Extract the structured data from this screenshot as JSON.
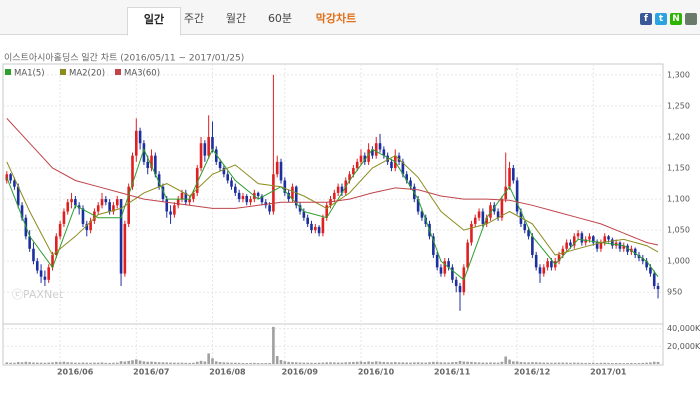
{
  "tabs": [
    "일간",
    "주간",
    "월간",
    "60분",
    "막강차트"
  ],
  "share_icons": [
    "f",
    "t",
    "N"
  ],
  "chart_data": {
    "type": "candlestick",
    "subtitle": "이스트아시아홀딩스 일간 차트 (2016/05/11 ~ 2017/01/25)",
    "watermark": "ⓒPAXNet",
    "up_color": "#e02020",
    "down_color": "#1c2f9e",
    "volume_color": "#a0a0a0",
    "xlim": [
      -1,
      172.3
    ],
    "xticks": [
      {
        "value": 14,
        "label": "2016/06"
      },
      {
        "value": 34,
        "label": "2016/07"
      },
      {
        "value": 54,
        "label": "2016/08"
      },
      {
        "value": 73,
        "label": "2016/09"
      },
      {
        "value": 93,
        "label": "2016/10"
      },
      {
        "value": 113,
        "label": "2016/11"
      },
      {
        "value": 134,
        "label": "2016/12"
      },
      {
        "value": 154,
        "label": "2017/01"
      }
    ],
    "ylim": [
      902,
      1316
    ],
    "yticks": [
      {
        "value": 950,
        "label": "950"
      },
      {
        "value": 1000,
        "label": "1,000"
      },
      {
        "value": 1050,
        "label": "1,050"
      },
      {
        "value": 1100,
        "label": "1,100"
      },
      {
        "value": 1150,
        "label": "1,150"
      },
      {
        "value": 1200,
        "label": "1,200"
      },
      {
        "value": 1250,
        "label": "1,250"
      },
      {
        "value": 1300,
        "label": "1,300"
      }
    ],
    "vlim": [
      0,
      43000
    ],
    "vticks": [
      {
        "value": 20000,
        "label": "20,000K"
      },
      {
        "value": 40000,
        "label": "40,000K"
      }
    ],
    "grid": true,
    "ohlc": [
      [
        1130,
        1145,
        1125,
        1140
      ],
      [
        1140,
        1142,
        1125,
        1130
      ],
      [
        1130,
        1135,
        1115,
        1120
      ],
      [
        1120,
        1125,
        1085,
        1090
      ],
      [
        1090,
        1095,
        1065,
        1070
      ],
      [
        1070,
        1075,
        1035,
        1040
      ],
      [
        1040,
        1050,
        1015,
        1020
      ],
      [
        1020,
        1030,
        995,
        1000
      ],
      [
        1000,
        1005,
        980,
        985
      ],
      [
        985,
        995,
        965,
        975
      ],
      [
        975,
        985,
        960,
        970
      ],
      [
        970,
        995,
        965,
        990
      ],
      [
        990,
        1015,
        985,
        1010
      ],
      [
        1010,
        1045,
        1005,
        1040
      ],
      [
        1040,
        1065,
        1035,
        1060
      ],
      [
        1060,
        1085,
        1055,
        1080
      ],
      [
        1080,
        1100,
        1075,
        1095
      ],
      [
        1095,
        1110,
        1085,
        1100
      ],
      [
        1100,
        1105,
        1085,
        1090
      ],
      [
        1090,
        1095,
        1075,
        1085
      ],
      [
        1085,
        1090,
        1055,
        1060
      ],
      [
        1060,
        1065,
        1040,
        1050
      ],
      [
        1050,
        1070,
        1045,
        1065
      ],
      [
        1065,
        1085,
        1060,
        1080
      ],
      [
        1080,
        1095,
        1075,
        1090
      ],
      [
        1090,
        1110,
        1085,
        1100
      ],
      [
        1100,
        1105,
        1090,
        1095
      ],
      [
        1095,
        1100,
        1075,
        1080
      ],
      [
        1080,
        1095,
        1075,
        1090
      ],
      [
        1090,
        1105,
        1085,
        1100
      ],
      [
        1100,
        1100,
        960,
        980
      ],
      [
        980,
        1065,
        975,
        1060
      ],
      [
        1060,
        1125,
        1055,
        1120
      ],
      [
        1120,
        1175,
        1115,
        1170
      ],
      [
        1170,
        1230,
        1160,
        1210
      ],
      [
        1210,
        1215,
        1180,
        1190
      ],
      [
        1190,
        1195,
        1155,
        1160
      ],
      [
        1160,
        1170,
        1140,
        1150
      ],
      [
        1150,
        1180,
        1145,
        1170
      ],
      [
        1170,
        1175,
        1135,
        1140
      ],
      [
        1140,
        1145,
        1115,
        1120
      ],
      [
        1120,
        1125,
        1095,
        1100
      ],
      [
        1100,
        1105,
        1070,
        1080
      ],
      [
        1080,
        1090,
        1060,
        1075
      ],
      [
        1075,
        1095,
        1070,
        1090
      ],
      [
        1090,
        1105,
        1085,
        1100
      ],
      [
        1100,
        1115,
        1095,
        1110
      ],
      [
        1110,
        1115,
        1090,
        1095
      ],
      [
        1095,
        1105,
        1090,
        1100
      ],
      [
        1100,
        1115,
        1095,
        1110
      ],
      [
        1110,
        1155,
        1105,
        1150
      ],
      [
        1150,
        1200,
        1145,
        1190
      ],
      [
        1190,
        1195,
        1160,
        1170
      ],
      [
        1170,
        1235,
        1165,
        1200
      ],
      [
        1200,
        1225,
        1175,
        1180
      ],
      [
        1180,
        1185,
        1155,
        1160
      ],
      [
        1160,
        1165,
        1145,
        1150
      ],
      [
        1150,
        1155,
        1135,
        1140
      ],
      [
        1140,
        1145,
        1125,
        1130
      ],
      [
        1130,
        1135,
        1115,
        1120
      ],
      [
        1120,
        1125,
        1105,
        1110
      ],
      [
        1110,
        1115,
        1095,
        1100
      ],
      [
        1100,
        1110,
        1095,
        1105
      ],
      [
        1105,
        1108,
        1090,
        1095
      ],
      [
        1095,
        1105,
        1090,
        1100
      ],
      [
        1100,
        1115,
        1095,
        1110
      ],
      [
        1110,
        1112,
        1100,
        1105
      ],
      [
        1105,
        1108,
        1090,
        1095
      ],
      [
        1095,
        1100,
        1085,
        1090
      ],
      [
        1090,
        1095,
        1075,
        1080
      ],
      [
        1080,
        1300,
        1075,
        1140
      ],
      [
        1140,
        1170,
        1135,
        1160
      ],
      [
        1160,
        1165,
        1125,
        1130
      ],
      [
        1130,
        1135,
        1105,
        1110
      ],
      [
        1110,
        1115,
        1095,
        1100
      ],
      [
        1100,
        1125,
        1095,
        1120
      ],
      [
        1120,
        1122,
        1085,
        1090
      ],
      [
        1090,
        1095,
        1075,
        1080
      ],
      [
        1080,
        1085,
        1065,
        1070
      ],
      [
        1070,
        1075,
        1055,
        1060
      ],
      [
        1060,
        1065,
        1045,
        1050
      ],
      [
        1050,
        1060,
        1045,
        1055
      ],
      [
        1055,
        1058,
        1040,
        1045
      ],
      [
        1045,
        1075,
        1040,
        1070
      ],
      [
        1070,
        1095,
        1065,
        1090
      ],
      [
        1090,
        1105,
        1085,
        1100
      ],
      [
        1100,
        1115,
        1095,
        1110
      ],
      [
        1110,
        1125,
        1105,
        1120
      ],
      [
        1120,
        1125,
        1105,
        1110
      ],
      [
        1110,
        1135,
        1105,
        1130
      ],
      [
        1130,
        1145,
        1125,
        1140
      ],
      [
        1140,
        1155,
        1135,
        1150
      ],
      [
        1150,
        1165,
        1145,
        1160
      ],
      [
        1160,
        1180,
        1155,
        1170
      ],
      [
        1170,
        1175,
        1155,
        1160
      ],
      [
        1160,
        1190,
        1155,
        1180
      ],
      [
        1180,
        1185,
        1165,
        1170
      ],
      [
        1170,
        1200,
        1165,
        1190
      ],
      [
        1190,
        1205,
        1175,
        1180
      ],
      [
        1180,
        1185,
        1165,
        1170
      ],
      [
        1170,
        1175,
        1155,
        1160
      ],
      [
        1160,
        1165,
        1145,
        1150
      ],
      [
        1150,
        1180,
        1145,
        1170
      ],
      [
        1170,
        1175,
        1155,
        1160
      ],
      [
        1160,
        1165,
        1135,
        1140
      ],
      [
        1140,
        1145,
        1125,
        1130
      ],
      [
        1130,
        1135,
        1115,
        1120
      ],
      [
        1120,
        1125,
        1095,
        1100
      ],
      [
        1100,
        1105,
        1075,
        1080
      ],
      [
        1080,
        1085,
        1065,
        1070
      ],
      [
        1070,
        1075,
        1055,
        1060
      ],
      [
        1060,
        1065,
        1035,
        1040
      ],
      [
        1040,
        1045,
        1005,
        1010
      ],
      [
        1010,
        1015,
        985,
        990
      ],
      [
        990,
        995,
        975,
        980
      ],
      [
        980,
        1005,
        975,
        1000
      ],
      [
        1000,
        1005,
        985,
        990
      ],
      [
        990,
        995,
        965,
        970
      ],
      [
        970,
        975,
        950,
        960
      ],
      [
        960,
        965,
        920,
        950
      ],
      [
        950,
        995,
        945,
        990
      ],
      [
        990,
        1035,
        985,
        1030
      ],
      [
        1030,
        1065,
        1025,
        1060
      ],
      [
        1060,
        1075,
        1055,
        1070
      ],
      [
        1070,
        1085,
        1065,
        1080
      ],
      [
        1080,
        1085,
        1055,
        1060
      ],
      [
        1060,
        1075,
        1055,
        1070
      ],
      [
        1070,
        1095,
        1065,
        1090
      ],
      [
        1090,
        1095,
        1075,
        1080
      ],
      [
        1080,
        1085,
        1065,
        1070
      ],
      [
        1070,
        1105,
        1065,
        1100
      ],
      [
        1100,
        1175,
        1095,
        1120
      ],
      [
        1120,
        1160,
        1115,
        1150
      ],
      [
        1150,
        1155,
        1125,
        1130
      ],
      [
        1130,
        1135,
        1075,
        1080
      ],
      [
        1080,
        1085,
        1055,
        1060
      ],
      [
        1060,
        1065,
        1045,
        1050
      ],
      [
        1050,
        1055,
        1035,
        1040
      ],
      [
        1040,
        1045,
        1005,
        1010
      ],
      [
        1010,
        1015,
        985,
        990
      ],
      [
        990,
        995,
        965,
        980
      ],
      [
        980,
        995,
        975,
        990
      ],
      [
        990,
        1005,
        985,
        1000
      ],
      [
        1000,
        1005,
        985,
        990
      ],
      [
        990,
        1005,
        985,
        1000
      ],
      [
        1000,
        1015,
        995,
        1010
      ],
      [
        1010,
        1025,
        1005,
        1020
      ],
      [
        1020,
        1035,
        1015,
        1030
      ],
      [
        1030,
        1035,
        1020,
        1025
      ],
      [
        1025,
        1045,
        1020,
        1040
      ],
      [
        1040,
        1050,
        1035,
        1045
      ],
      [
        1045,
        1048,
        1025,
        1030
      ],
      [
        1030,
        1040,
        1025,
        1035
      ],
      [
        1035,
        1045,
        1030,
        1040
      ],
      [
        1040,
        1042,
        1025,
        1030
      ],
      [
        1030,
        1035,
        1015,
        1020
      ],
      [
        1020,
        1035,
        1015,
        1030
      ],
      [
        1030,
        1045,
        1025,
        1040
      ],
      [
        1040,
        1042,
        1030,
        1035
      ],
      [
        1035,
        1038,
        1020,
        1025
      ],
      [
        1025,
        1035,
        1020,
        1030
      ],
      [
        1030,
        1032,
        1015,
        1020
      ],
      [
        1020,
        1030,
        1015,
        1025
      ],
      [
        1025,
        1028,
        1010,
        1015
      ],
      [
        1015,
        1025,
        1010,
        1020
      ],
      [
        1020,
        1022,
        1005,
        1010
      ],
      [
        1010,
        1015,
        1000,
        1005
      ],
      [
        1005,
        1010,
        995,
        1000
      ],
      [
        1000,
        1005,
        985,
        990
      ],
      [
        990,
        995,
        975,
        980
      ],
      [
        980,
        985,
        955,
        960
      ],
      [
        960,
        965,
        940,
        955
      ]
    ],
    "volume": [
      1800,
      1500,
      1400,
      2200,
      1900,
      2500,
      2100,
      1700,
      1600,
      1500,
      1400,
      1600,
      1800,
      2400,
      2100,
      2600,
      2000,
      1800,
      1500,
      1400,
      1700,
      1500,
      1400,
      1600,
      1500,
      1800,
      1300,
      1200,
      1400,
      1500,
      3200,
      2800,
      3500,
      4200,
      5200,
      3900,
      3000,
      2500,
      2700,
      2300,
      2000,
      1900,
      1800,
      1600,
      1500,
      1400,
      1500,
      1300,
      1200,
      1400,
      2500,
      3600,
      2800,
      12000,
      6500,
      3000,
      2200,
      1900,
      1700,
      1500,
      1400,
      1300,
      1200,
      1100,
      1200,
      1300,
      1100,
      1000,
      1100,
      1200,
      42000,
      9000,
      4500,
      3000,
      2400,
      2200,
      1900,
      1700,
      1600,
      1500,
      1400,
      1300,
      1500,
      1700,
      1900,
      2000,
      1800,
      1700,
      1600,
      1900,
      2100,
      2300,
      2500,
      2800,
      2200,
      2900,
      2400,
      3000,
      2600,
      2300,
      2000,
      1900,
      2200,
      1800,
      1900,
      1700,
      1600,
      1800,
      1900,
      1700,
      1600,
      2000,
      2400,
      2200,
      1900,
      1800,
      1700,
      2100,
      2300,
      3500,
      2800,
      2600,
      2400,
      2000,
      1800,
      1700,
      1600,
      1800,
      1700,
      1500,
      2500,
      8500,
      5000,
      3000,
      2800,
      2200,
      1900,
      1800,
      2100,
      2000,
      1800,
      1600,
      1500,
      1400,
      1500,
      1600,
      1700,
      1500,
      1400,
      1600,
      1500,
      1300,
      1200,
      1300,
      1400,
      1200,
      1300,
      1400,
      1200,
      1100,
      1200,
      1100,
      1000,
      1100,
      1200,
      1000,
      1100,
      1300,
      1500,
      1800,
      2500,
      2300
    ],
    "ma_x": [
      0,
      6,
      12,
      18,
      24,
      30,
      36,
      42,
      48,
      54,
      60,
      66,
      72,
      78,
      84,
      90,
      96,
      102,
      108,
      114,
      120,
      126,
      132,
      138,
      144,
      150,
      156,
      162,
      168,
      171
    ],
    "series": [
      {
        "name": "MA1(5)",
        "color": "#2e9e2e",
        "values": [
          1135,
          1040,
          990,
          1090,
          1070,
          1070,
          1180,
          1100,
          1100,
          1180,
          1130,
          1100,
          1120,
          1080,
          1070,
          1130,
          1180,
          1160,
          1100,
          1000,
          970,
          1070,
          1120,
          1040,
          995,
          1035,
          1030,
          1025,
          1000,
          975
        ]
      },
      {
        "name": "MA2(20)",
        "color": "#8c8c1e",
        "values": [
          1160,
          1080,
          1010,
          1040,
          1075,
          1085,
          1110,
          1125,
          1105,
          1140,
          1155,
          1125,
          1120,
          1105,
          1085,
          1110,
          1150,
          1170,
          1135,
          1080,
          1050,
          1060,
          1080,
          1060,
          1010,
          1020,
          1030,
          1035,
          1025,
          1015
        ]
      },
      {
        "name": "MA3(60)",
        "color": "#c0444a",
        "values": [
          1230,
          1190,
          1150,
          1130,
          1120,
          1110,
          1100,
          1095,
          1090,
          1085,
          1085,
          1090,
          1095,
          1095,
          1095,
          1100,
          1110,
          1118,
          1115,
          1105,
          1100,
          1100,
          1098,
          1090,
          1080,
          1070,
          1060,
          1045,
          1030,
          1026
        ]
      }
    ]
  }
}
